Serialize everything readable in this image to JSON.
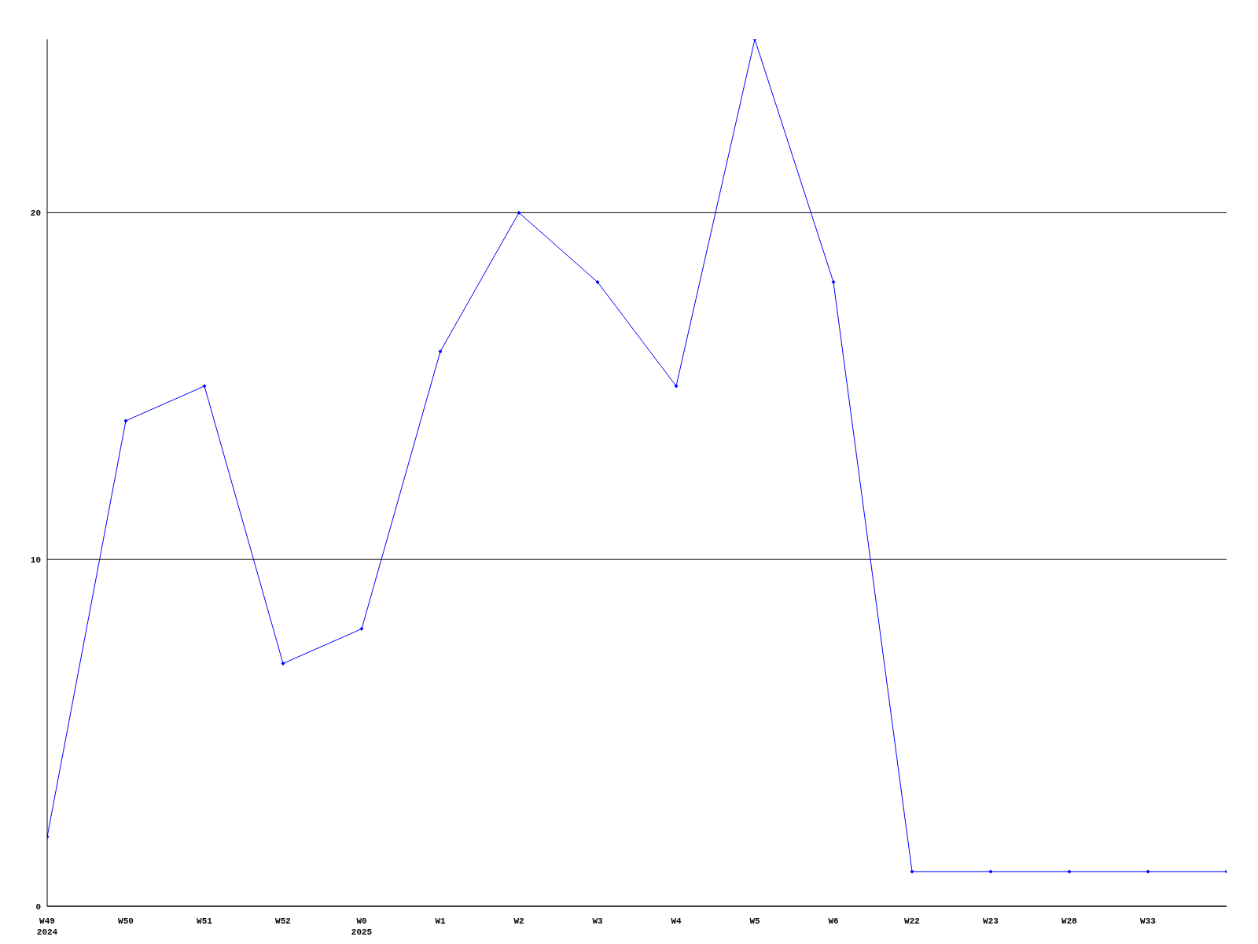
{
  "chart_data": {
    "type": "line",
    "categories": [
      "W49\n2024",
      "W50",
      "W51",
      "W52",
      "W0\n2025",
      "W1",
      "W2",
      "W3",
      "W4",
      "W5",
      "W6",
      "W22",
      "W23",
      "W28",
      "W33",
      null
    ],
    "series": [
      {
        "color": "#0000ff",
        "values": [
          2,
          14,
          15,
          7,
          8,
          16,
          20,
          18,
          15,
          25,
          18,
          1,
          1,
          1,
          1,
          1
        ]
      }
    ],
    "ylim": [
      0,
      25
    ],
    "yticks": [
      0,
      10,
      20
    ],
    "grid": "y",
    "marker": "diamond"
  }
}
